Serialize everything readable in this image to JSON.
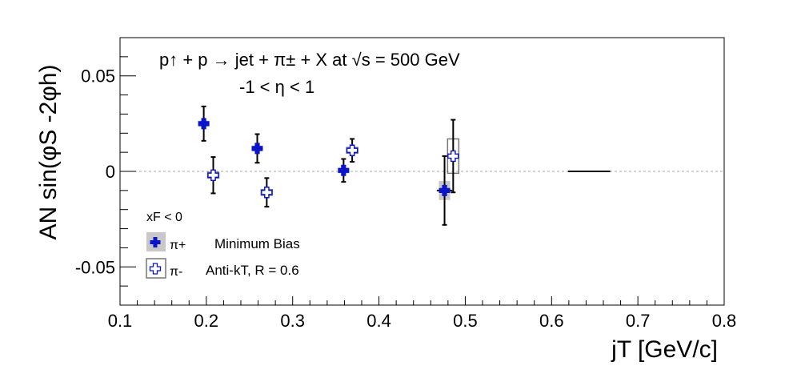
{
  "chart_data": {
    "type": "scatter",
    "title_line1": "p↑ + p → jet + π± + X at √s = 500 GeV",
    "title_line2": "-1 < η < 1",
    "xlabel": "jT [GeV/c]",
    "ylabel": "AN sin(φS -2φh)",
    "xlim": [
      0.1,
      0.8
    ],
    "ylim": [
      -0.07,
      0.07
    ],
    "x_ticks": [
      0.1,
      0.2,
      0.3,
      0.4,
      0.5,
      0.6,
      0.7,
      0.8
    ],
    "x_tick_labels": [
      "0.1",
      "0.2",
      "0.3",
      "0.4",
      "0.5",
      "0.6",
      "0.7",
      "0.8"
    ],
    "y_ticks": [
      -0.05,
      0,
      0.05
    ],
    "y_tick_labels": [
      "-0.05",
      "0",
      "0.05"
    ],
    "zero_line": true,
    "legend": {
      "header": "xF < 0",
      "entries": [
        "π+",
        "π-"
      ],
      "notes": [
        "Minimum Bias",
        "Anti-kT, R = 0.6"
      ]
    },
    "series": [
      {
        "name": "π+",
        "color": "#0a14c8",
        "marker": "filled-cross",
        "points": [
          {
            "x": 0.197,
            "y": 0.025,
            "yerr": 0.009,
            "xerr": 0.0,
            "sys": 0.0015
          },
          {
            "x": 0.259,
            "y": 0.012,
            "yerr": 0.0075,
            "xerr": 0.0,
            "sys": 0.0015
          },
          {
            "x": 0.359,
            "y": 0.0005,
            "yerr": 0.006,
            "xerr": 0.0,
            "sys": 0.0015
          },
          {
            "x": 0.476,
            "y": -0.01,
            "yerr": 0.018,
            "xerr": 0.009,
            "sys": 0.005
          }
        ]
      },
      {
        "name": "π-",
        "color": "#0a14c8",
        "marker": "open-cross",
        "points": [
          {
            "x": 0.208,
            "y": -0.002,
            "yerr": 0.0095,
            "xerr": 0.0,
            "sys": 0.0015
          },
          {
            "x": 0.27,
            "y": -0.011,
            "yerr": 0.0075,
            "xerr": 0.0,
            "sys": 0.0015
          },
          {
            "x": 0.369,
            "y": 0.011,
            "yerr": 0.006,
            "xerr": 0.0,
            "sys": 0.0015
          },
          {
            "x": 0.486,
            "y": 0.008,
            "yerr": 0.019,
            "xerr": 0.0,
            "sys": 0.009
          }
        ]
      }
    ],
    "extra_segment": {
      "x1": 0.619,
      "x2": 0.668,
      "y": 0.0
    }
  }
}
